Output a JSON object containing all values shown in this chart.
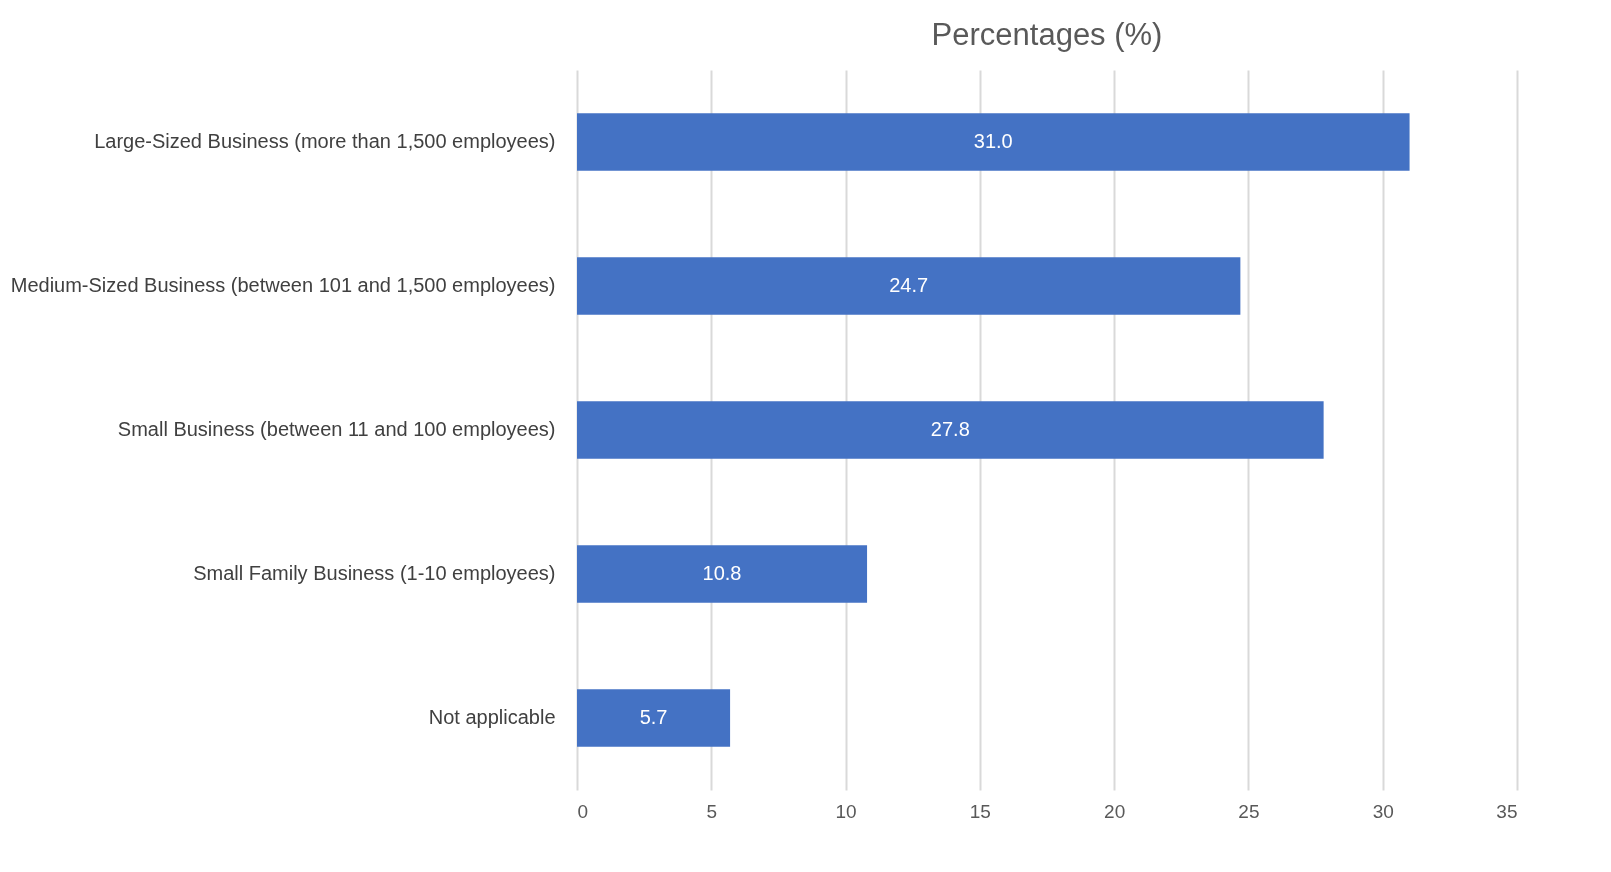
{
  "chart_data": {
    "type": "bar",
    "orientation": "horizontal",
    "title": "Percentages (%)",
    "categories": [
      "Large-Sized Business (more than 1,500 employees)",
      "Medium-Sized Business (between 101 and 1,500 employees)",
      "Small Business (between 11 and 100 employees)",
      "Small Family Business (1-10 employees)",
      "Not applicable"
    ],
    "values": [
      31.0,
      24.7,
      27.8,
      10.8,
      5.7
    ],
    "value_labels": [
      "31.0",
      "24.7",
      "27.8",
      "10.8",
      "5.7"
    ],
    "color": "#4472c4",
    "xlim": [
      0,
      35
    ],
    "xticks": [
      0,
      5,
      10,
      15,
      20,
      25,
      30,
      35
    ],
    "grid": "x"
  }
}
